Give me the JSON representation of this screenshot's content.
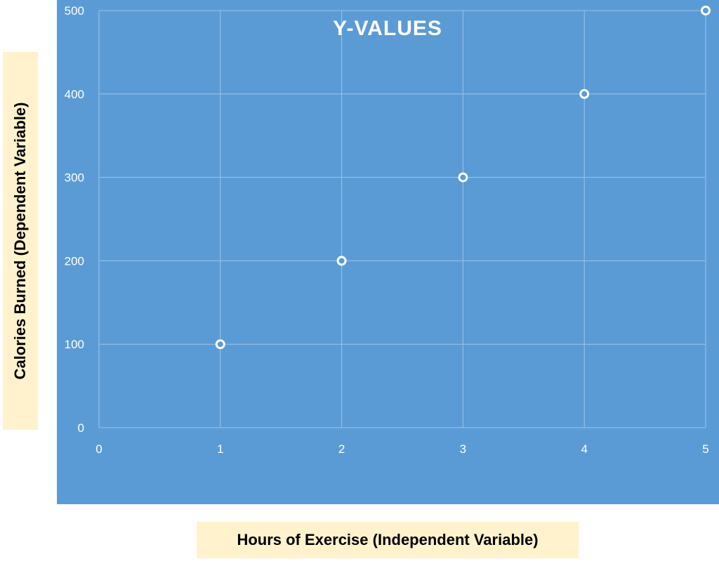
{
  "chart_data": {
    "type": "scatter",
    "title": "Y-VALUES",
    "xlabel": "Hours of Exercise (Independent Variable)",
    "ylabel": "Calories Burned  (Dependent Variable)",
    "x": [
      1,
      2,
      3,
      4,
      5
    ],
    "y": [
      100,
      200,
      300,
      400,
      500
    ],
    "xlim": [
      0,
      5
    ],
    "ylim": [
      0,
      500
    ],
    "xticks": [
      "0",
      "1",
      "2",
      "3",
      "4",
      "5"
    ],
    "yticks": [
      "0",
      "100",
      "200",
      "300",
      "400",
      "500"
    ],
    "grid": true,
    "legend": "none",
    "colors": {
      "plot_background": "#5b9bd5",
      "gridline": "#9dc3e6",
      "marker_fill": "#5b9bd5",
      "marker_stroke": "#ffffff",
      "text": "#ffffff",
      "label_box": "#fff2cc"
    }
  }
}
